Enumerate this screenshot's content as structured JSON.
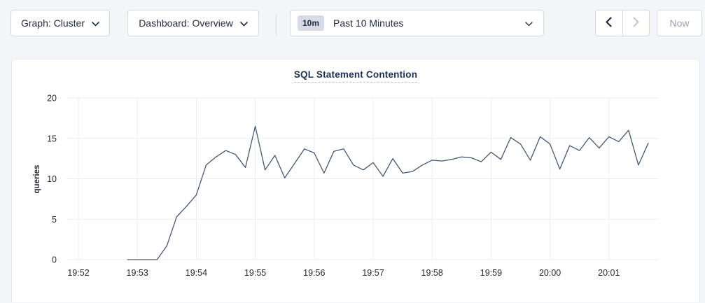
{
  "toolbar": {
    "graph_dropdown_label": "Graph: Cluster",
    "dashboard_dropdown_label": "Dashboard: Overview",
    "time_badge": "10m",
    "time_label": "Past 10 Minutes",
    "now_label": "Now",
    "icons": {
      "graph_chevron": "chevron-down",
      "dashboard_chevron": "chevron-down",
      "time_chevron": "chevron-down",
      "prev": "chevron-left",
      "next": "chevron-right"
    }
  },
  "colors": {
    "page_bg": "#f4f5f9",
    "card_bg": "#ffffff",
    "control_border": "#d5d8de",
    "text_navy": "#242c44",
    "disabled": "#c3c8d2",
    "now_disabled_text": "#9ba3b0",
    "title": "#1f3153",
    "grid": "#ededf0",
    "tick_text": "#25282e",
    "line": "#475872"
  },
  "chart_data": {
    "type": "line",
    "title": "SQL Statement Contention",
    "ylabel": "queries",
    "ylim": [
      0,
      20
    ],
    "yticks": [
      0,
      5,
      10,
      15,
      20
    ],
    "xticks": [
      "19:52",
      "19:53",
      "19:54",
      "19:55",
      "19:56",
      "19:57",
      "19:58",
      "19:59",
      "20:00",
      "20:01"
    ],
    "grid": true,
    "legend": "none",
    "line_color": "#475872",
    "series": [
      {
        "name": "queries",
        "start_time": "19:52:50",
        "interval_seconds": 10,
        "values": [
          0,
          0,
          0,
          0,
          1.7,
          5.3,
          6.6,
          8.0,
          11.7,
          12.7,
          13.5,
          13.0,
          11.4,
          16.5,
          11.1,
          12.9,
          10.1,
          11.9,
          13.7,
          13.2,
          10.7,
          13.4,
          13.7,
          11.7,
          11.1,
          12.0,
          10.3,
          12.5,
          10.7,
          10.9,
          11.7,
          12.3,
          12.2,
          12.4,
          12.7,
          12.6,
          12.1,
          13.3,
          12.4,
          15.1,
          14.3,
          12.3,
          15.2,
          14.3,
          11.2,
          14.1,
          13.5,
          15.1,
          13.8,
          15.2,
          14.6,
          16.0,
          11.7,
          14.4
        ]
      }
    ]
  }
}
